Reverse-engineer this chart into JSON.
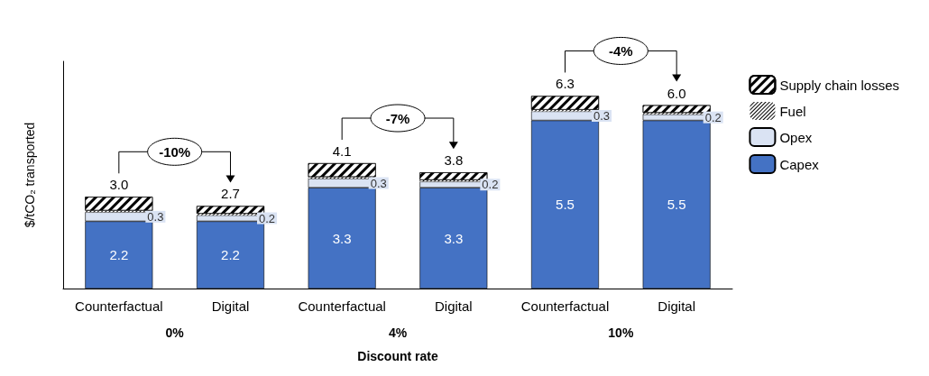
{
  "chart_data": {
    "type": "bar",
    "stacked": true,
    "xlabel": "Discount rate",
    "ylabel": "$/tCO₂ transported",
    "categories": [
      "Counterfactual",
      "Digital",
      "Counterfactual",
      "Digital",
      "Counterfactual",
      "Digital"
    ],
    "series": [
      {
        "name": "Capex",
        "color": "#4472c4",
        "values": [
          2.2,
          2.2,
          3.3,
          3.3,
          5.5,
          5.5
        ],
        "value_labels": [
          "2.2",
          "2.2",
          "3.3",
          "3.3",
          "5.5",
          "5.5"
        ]
      },
      {
        "name": "Opex",
        "color": "#dae3f3",
        "values": [
          0.3,
          0.2,
          0.3,
          0.2,
          0.3,
          0.2
        ],
        "value_labels": [
          "0.3",
          "0.2",
          "0.3",
          "0.2",
          "0.3",
          "0.2"
        ]
      },
      {
        "name": "Fuel",
        "color": "#000000",
        "values": [
          0.05,
          0.05,
          0.05,
          0.05,
          0.05,
          0.05
        ]
      },
      {
        "name": "Supply chain losses",
        "color": "#000000",
        "values": [
          0.45,
          0.25,
          0.45,
          0.25,
          0.45,
          0.25
        ]
      }
    ],
    "totals": [
      "3.0",
      "2.7",
      "4.1",
      "3.8",
      "6.3",
      "6.0"
    ],
    "annotations": [
      "-10%",
      "-7%",
      "-4%",
      "0%",
      "4%",
      "10%"
    ],
    "legend": "right",
    "grid": false
  }
}
